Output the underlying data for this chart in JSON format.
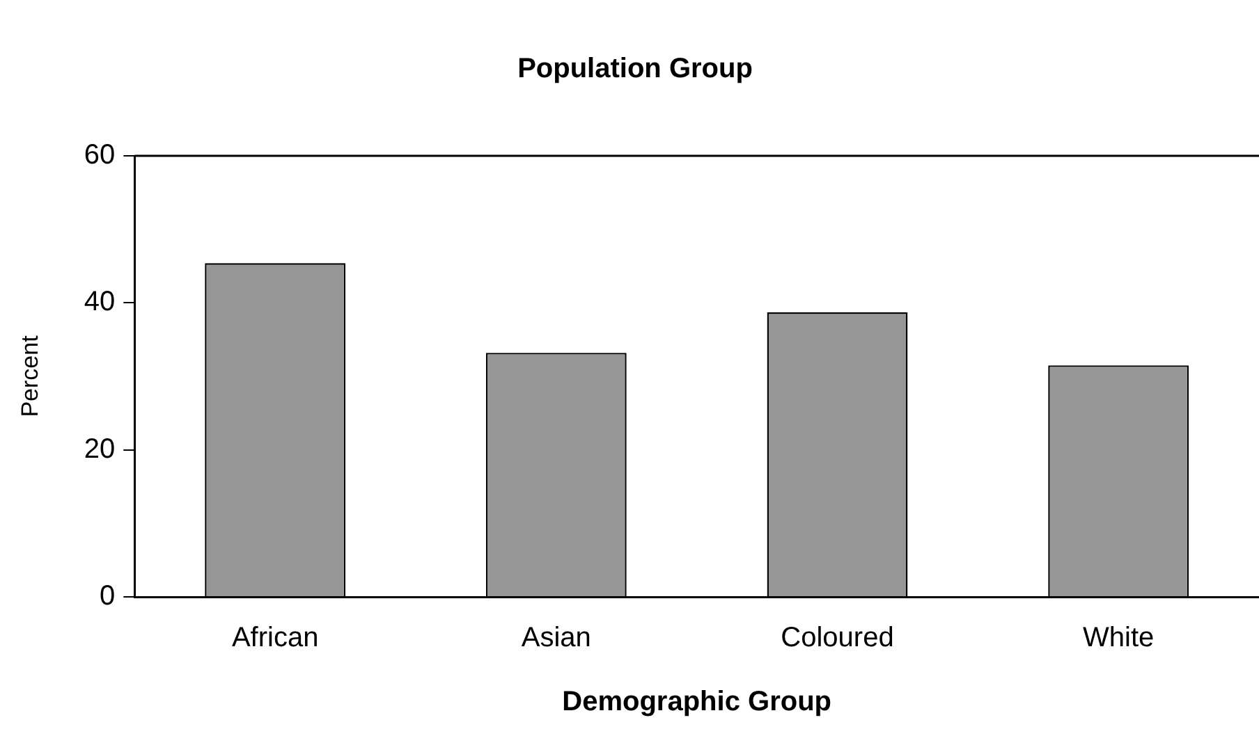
{
  "chart_data": {
    "type": "bar",
    "title": "Population Group",
    "xlabel": "Demographic Group",
    "ylabel": "Percent",
    "categories": [
      "African",
      "Asian",
      "Coloured",
      "White"
    ],
    "values": [
      45.4,
      33.2,
      38.7,
      31.5
    ],
    "color": "#969696",
    "ylim": [
      0,
      60
    ],
    "yticks": [
      0,
      20,
      40,
      60
    ],
    "grid": false,
    "legend": false
  }
}
